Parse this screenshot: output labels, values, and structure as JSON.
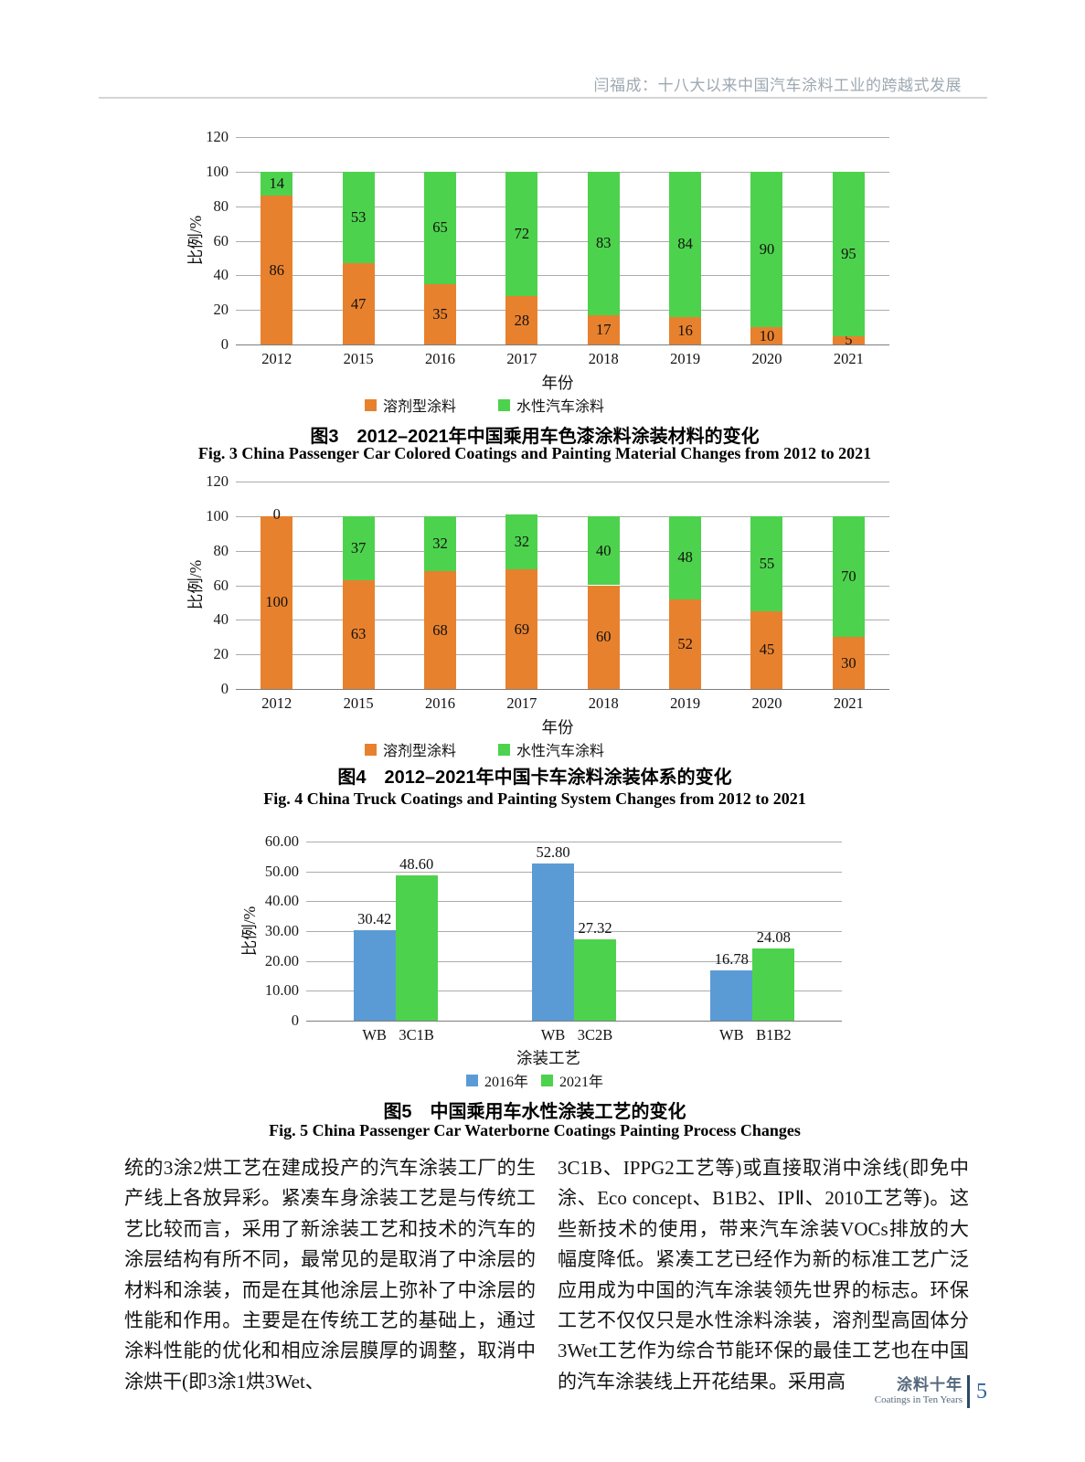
{
  "header": {
    "running_title": "闫福成：十八大以来中国汽车涂料工业的跨越式发展"
  },
  "colors": {
    "solvent_orange": "#E8812D",
    "waterborne_green": "#4DD24D",
    "year2016_blue": "#5B9BD5",
    "year2021_green": "#4DD24D",
    "gridline": "#ababab",
    "footer_blue": "#31659b"
  },
  "chart_data": [
    {
      "id": "fig3",
      "type": "bar",
      "stacked": true,
      "title_zh": "图3　2012–2021年中国乘用车色漆涂料涂装材料的变化",
      "title_en": "Fig. 3  China Passenger Car Colored Coatings and Painting Material Changes from 2012 to 2021",
      "categories": [
        "2012",
        "2015",
        "2016",
        "2017",
        "2018",
        "2019",
        "2020",
        "2021"
      ],
      "series": [
        {
          "name": "溶剂型涂料",
          "color": "#E8812D",
          "values": [
            86,
            47,
            35,
            28,
            17,
            16,
            10,
            5
          ]
        },
        {
          "name": "水性汽车涂料",
          "color": "#4DD24D",
          "values": [
            14,
            53,
            65,
            72,
            83,
            84,
            90,
            95
          ]
        }
      ],
      "xlabel": "年份",
      "ylabel": "比例/%",
      "ylim": [
        0,
        120
      ],
      "yticks": [
        "0",
        "20",
        "40",
        "60",
        "80",
        "100",
        "120"
      ],
      "grid": true,
      "legend_position": "bottom"
    },
    {
      "id": "fig4",
      "type": "bar",
      "stacked": true,
      "title_zh": "图4　2012–2021年中国卡车涂料涂装体系的变化",
      "title_en": "Fig. 4  China Truck Coatings and Painting System Changes from 2012 to 2021",
      "categories": [
        "2012",
        "2015",
        "2016",
        "2017",
        "2018",
        "2019",
        "2020",
        "2021"
      ],
      "series": [
        {
          "name": "溶剂型涂料",
          "color": "#E8812D",
          "values": [
            100,
            63,
            68,
            69,
            60,
            52,
            45,
            30
          ]
        },
        {
          "name": "水性汽车涂料",
          "color": "#4DD24D",
          "values": [
            0,
            37,
            32,
            32,
            40,
            48,
            55,
            70
          ]
        }
      ],
      "xlabel": "年份",
      "ylabel": "比例/%",
      "ylim": [
        0,
        120
      ],
      "yticks": [
        "0",
        "20",
        "40",
        "60",
        "80",
        "100",
        "120"
      ],
      "grid": true,
      "legend_position": "bottom"
    },
    {
      "id": "fig5",
      "type": "bar",
      "stacked": false,
      "title_zh": "图5　中国乘用车水性涂装工艺的变化",
      "title_en": "Fig. 5  China Passenger Car Waterborne Coatings Painting Process Changes",
      "categories": [
        [
          "WB",
          "3C1B"
        ],
        [
          "WB",
          "3C2B"
        ],
        [
          "WB",
          "B1B2"
        ]
      ],
      "series": [
        {
          "name": "2016年",
          "color": "#5B9BD5",
          "values": [
            30.42,
            52.8,
            16.78
          ]
        },
        {
          "name": "2021年",
          "color": "#4DD24D",
          "values": [
            48.6,
            27.32,
            24.08
          ]
        }
      ],
      "value_labels": [
        [
          "30.42",
          "52.80",
          "16.78"
        ],
        [
          "48.60",
          "27.32",
          "24.08"
        ]
      ],
      "xlabel": "涂装工艺",
      "ylabel": "比例/%",
      "ylim": [
        0,
        60
      ],
      "yticks": [
        "0",
        "10.00",
        "20.00",
        "30.00",
        "40.00",
        "50.00",
        "60.00"
      ],
      "grid": true,
      "legend_position": "bottom"
    }
  ],
  "body_text": {
    "left_column": "统的3涂2烘工艺在建成投产的汽车涂装工厂的生产线上各放异彩。紧凑车身涂装工艺是与传统工艺比较而言，采用了新涂装工艺和技术的汽车的涂层结构有所不同，最常见的是取消了中涂层的材料和涂装，而是在其他涂层上弥补了中涂层的性能和作用。主要是在传统工艺的基础上，通过涂料性能的优化和相应涂层膜厚的调整，取消中涂烘干(即3涂1烘3Wet、",
    "right_column": "3C1B、IPPG2工艺等)或直接取消中涂线(即免中涂、Eco concept、B1B2、IPⅡ、2010工艺等)。这些新技术的使用，带来汽车涂装VOCs排放的大幅度降低。紧凑工艺已经作为新的标准工艺广泛应用成为中国的汽车涂装领先世界的标志。环保工艺不仅仅只是水性涂料涂装，溶剂型高固体分3Wet工艺作为综合节能环保的最佳工艺也在中国的汽车涂装线上开花结果。采用高"
  },
  "footer": {
    "brand_zh": "涂料十年",
    "brand_en": "Coatings in Ten Years",
    "page_number": "5"
  }
}
